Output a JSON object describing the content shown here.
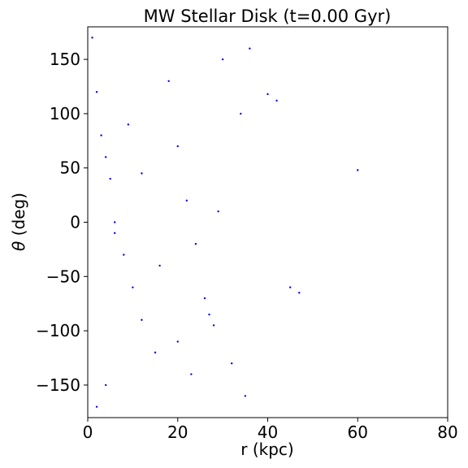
{
  "chart_data": {
    "type": "scatter",
    "title": "MW Stellar Disk (t=0.00 Gyr)",
    "xlabel": "r (kpc)",
    "ylabel_symbol": "θ",
    "ylabel_unit": " (deg)",
    "xlim": [
      0,
      80
    ],
    "ylim": [
      -180,
      180
    ],
    "xticks": [
      0,
      20,
      40,
      60,
      80
    ],
    "xtick_labels": [
      "0",
      "20",
      "40",
      "60",
      "80"
    ],
    "yticks": [
      150,
      100,
      50,
      0,
      -50,
      -100,
      -150
    ],
    "ytick_labels": [
      "150",
      "100",
      "50",
      "0",
      "−50",
      "−100",
      "−150"
    ],
    "grid": false,
    "series": [
      {
        "color": "#0000ff",
        "x": [
          1,
          2,
          3,
          4,
          5,
          6,
          8,
          10,
          12,
          15,
          18,
          20,
          22,
          24,
          26,
          28,
          30,
          32,
          34,
          36,
          40,
          42,
          45,
          60,
          2,
          4,
          6,
          9,
          12,
          16,
          20,
          23,
          27,
          29,
          35,
          47
        ],
        "y": [
          170,
          120,
          80,
          60,
          40,
          0,
          -30,
          -60,
          -90,
          -120,
          130,
          70,
          20,
          -20,
          -70,
          -95,
          150,
          -130,
          100,
          160,
          118,
          112,
          -60,
          48,
          -170,
          -150,
          -10,
          90,
          45,
          -40,
          -110,
          -140,
          -85,
          10,
          -160,
          -65
        ]
      }
    ]
  }
}
